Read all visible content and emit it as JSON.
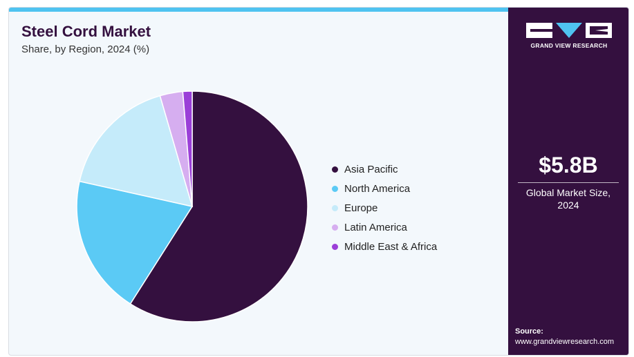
{
  "header": {
    "title": "Steel Cord Market",
    "subtitle": "Share, by Region, 2024 (%)"
  },
  "chart_data": {
    "type": "pie",
    "categories": [
      "Asia Pacific",
      "North America",
      "Europe",
      "Latin America",
      "Middle East & Africa"
    ],
    "values": [
      59.0,
      19.5,
      17.0,
      3.2,
      1.3
    ],
    "colors": [
      "#34103f",
      "#5bcaf5",
      "#c5ebfa",
      "#d6aef0",
      "#9b3fd8"
    ],
    "legend_position": "right"
  },
  "sidebar": {
    "logo_text": "GRAND VIEW RESEARCH",
    "metric_value": "$5.8B",
    "metric_label_line1": "Global Market Size,",
    "metric_label_line2": "2024",
    "source_label": "Source:",
    "source_url": "www.grandviewresearch.com"
  },
  "colors": {
    "accent": "#4fc3f0",
    "brand": "#34103f",
    "background": "#f3f8fc"
  }
}
